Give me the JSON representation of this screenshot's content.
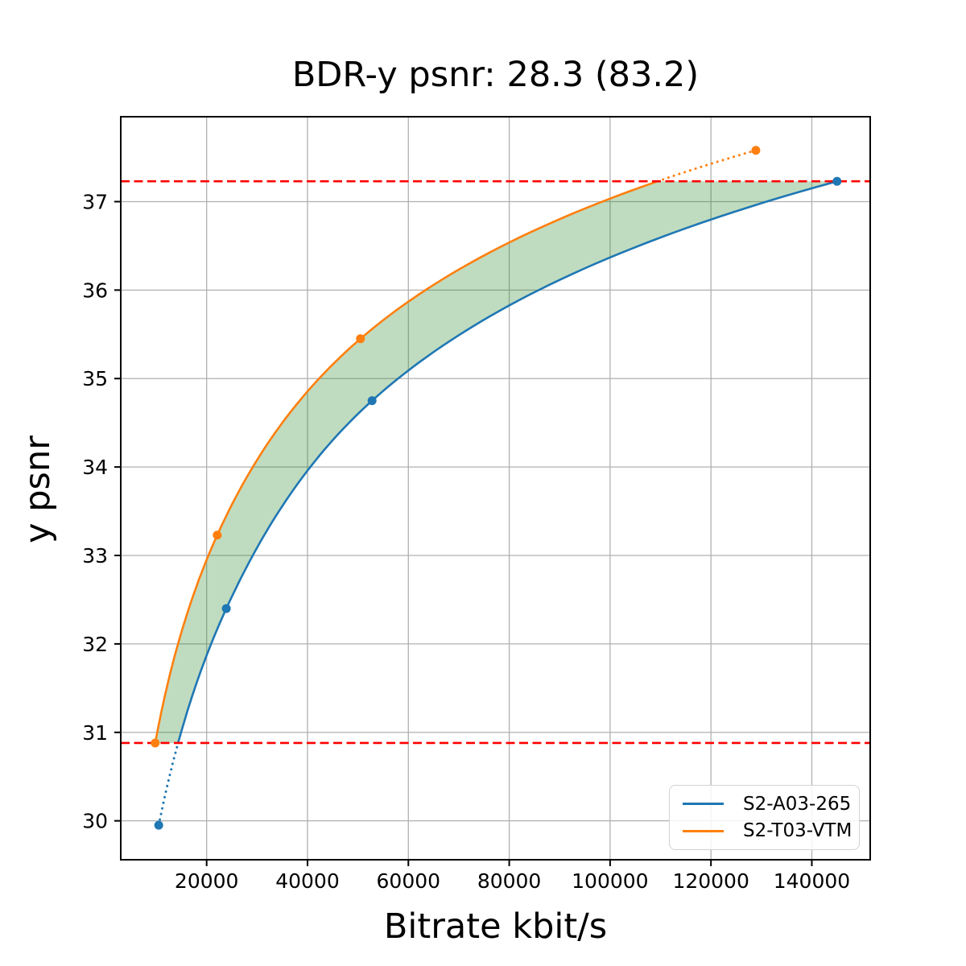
{
  "chart_data": {
    "type": "line",
    "title": "BDR-y psnr: 28.3 (83.2)",
    "xlabel": "Bitrate kbit/s",
    "ylabel": "y psnr",
    "xlim": [
      2969,
      151578
    ],
    "ylim": [
      29.56,
      37.96
    ],
    "xticks": [
      20000,
      40000,
      60000,
      80000,
      100000,
      120000,
      140000
    ],
    "yticks": [
      30,
      31,
      32,
      33,
      34,
      35,
      36,
      37
    ],
    "grid": true,
    "grid_color": "#b0b0b0",
    "legend_position": "lower right",
    "series": [
      {
        "name": "S2-A03-265",
        "color": "#1f77b4",
        "points": [
          [
            10500,
            29.95
          ],
          [
            23900,
            32.4
          ],
          [
            52800,
            34.75
          ],
          [
            145000,
            37.23
          ]
        ]
      },
      {
        "name": "S2-T03-VTM",
        "color": "#ff7f0e",
        "points": [
          [
            9800,
            30.88
          ],
          [
            22100,
            33.23
          ],
          [
            50500,
            35.45
          ],
          [
            128900,
            37.58
          ]
        ]
      }
    ],
    "overlap_lines": {
      "color": "#ff0000",
      "style": "dashed",
      "values": [
        30.88,
        37.23
      ]
    },
    "fill_between": {
      "color": "#2e8b2e",
      "opacity": 0.3,
      "psnr_range": [
        30.88,
        37.23
      ]
    }
  }
}
